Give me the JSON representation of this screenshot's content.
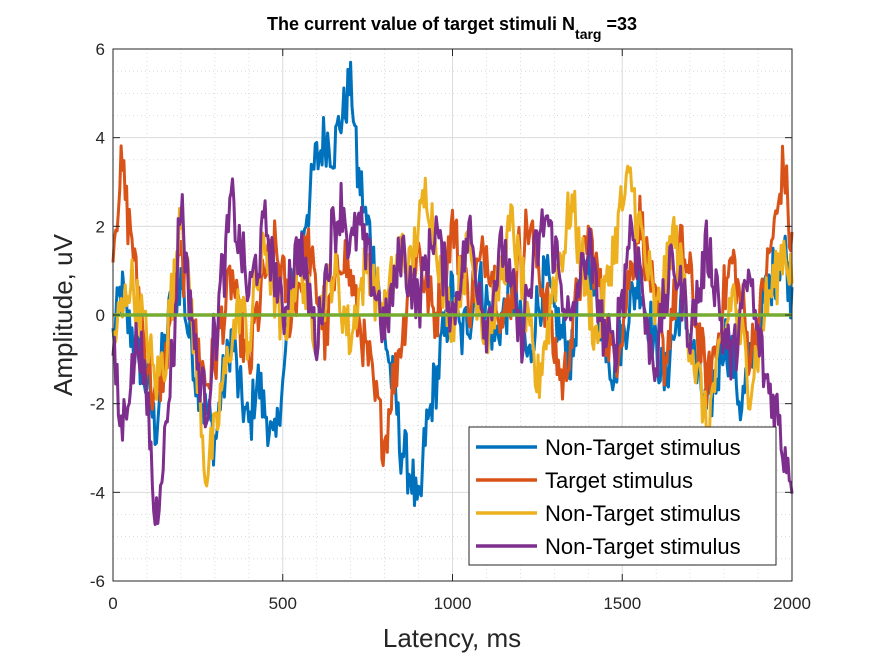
{
  "chart_data": {
    "type": "line",
    "title": {
      "main": "The current value of target stimuli N",
      "subscript": "targ",
      "suffix": " =33"
    },
    "xlabel": "Latency, ms",
    "ylabel": "Amplitude, uV",
    "xlim": [
      0,
      2000
    ],
    "ylim": [
      -6,
      6
    ],
    "xticks": [
      0,
      500,
      1000,
      1500,
      2000
    ],
    "yticks": [
      -6,
      -4,
      -2,
      0,
      2,
      4,
      6
    ],
    "xtick_labels": [
      "0",
      "500",
      "1000",
      "1500",
      "2000"
    ],
    "ytick_labels": [
      "-6",
      "-4",
      "-2",
      "0",
      "2",
      "4",
      "6"
    ],
    "grid": true,
    "minor_grid": true,
    "legend_position": "bottom-right",
    "series": [
      {
        "name": "Non-Target stimulus",
        "color": "#0072BD",
        "x": [
          0,
          25,
          50,
          75,
          100,
          125,
          150,
          175,
          200,
          225,
          250,
          275,
          300,
          325,
          350,
          375,
          400,
          425,
          450,
          475,
          500,
          525,
          550,
          575,
          600,
          625,
          650,
          675,
          700,
          725,
          750,
          775,
          800,
          825,
          850,
          875,
          900,
          925,
          950,
          975,
          1000,
          1025,
          1050,
          1075,
          1100,
          1125,
          1150,
          1175,
          1200,
          1225,
          1250,
          1275,
          1300,
          1325,
          1350,
          1375,
          1400,
          1425,
          1450,
          1475,
          1500,
          1525,
          1550,
          1575,
          1600,
          1625,
          1650,
          1675,
          1700,
          1725,
          1750,
          1775,
          1800,
          1825,
          1850,
          1875,
          1900,
          1925,
          1950,
          1975,
          2000
        ],
        "values": [
          -0.5,
          0.5,
          -0.3,
          -1.0,
          -1.5,
          -2.5,
          -0.8,
          0.3,
          0.8,
          -0.4,
          -1.5,
          -2.2,
          -2.8,
          -1.5,
          -0.5,
          -1.8,
          -2.5,
          -1.5,
          -2.2,
          -3.0,
          -1.5,
          0.5,
          1.5,
          2.5,
          3.5,
          4.0,
          3.8,
          4.5,
          5.2,
          3.0,
          2.0,
          1.0,
          -0.5,
          -1.5,
          -3.0,
          -3.5,
          -4.5,
          -2.5,
          -1.5,
          -0.5,
          0.5,
          -0.5,
          0.0,
          0.8,
          0.3,
          -0.5,
          0.0,
          0.5,
          -0.3,
          -1.0,
          0.2,
          0.8,
          0.0,
          -0.5,
          -1.0,
          0.5,
          1.2,
          0.3,
          -0.5,
          -1.2,
          -0.5,
          0.3,
          0.8,
          0.0,
          -0.8,
          -1.5,
          -0.5,
          0.3,
          -0.5,
          -1.5,
          -2.2,
          -1.5,
          -0.5,
          -1.0,
          -2.0,
          -1.2,
          -0.3,
          0.5,
          1.0,
          1.5,
          0.5
        ]
      },
      {
        "name": "Target stimulus",
        "color": "#D95319",
        "x": [
          0,
          25,
          50,
          75,
          100,
          125,
          150,
          175,
          200,
          225,
          250,
          275,
          300,
          325,
          350,
          375,
          400,
          425,
          450,
          475,
          500,
          525,
          550,
          575,
          600,
          625,
          650,
          675,
          700,
          725,
          750,
          775,
          800,
          825,
          850,
          875,
          900,
          925,
          950,
          975,
          1000,
          1025,
          1050,
          1075,
          1100,
          1125,
          1150,
          1175,
          1200,
          1225,
          1250,
          1275,
          1300,
          1325,
          1350,
          1375,
          1400,
          1425,
          1450,
          1475,
          1500,
          1525,
          1550,
          1575,
          1600,
          1625,
          1650,
          1675,
          1700,
          1725,
          1750,
          1775,
          1800,
          1825,
          1850,
          1875,
          1900,
          1925,
          1950,
          1975,
          2000
        ],
        "values": [
          1.8,
          3.2,
          2.0,
          0.5,
          -1.0,
          -2.0,
          -1.2,
          0.2,
          1.2,
          0.5,
          -0.8,
          -1.5,
          -1.0,
          0.0,
          0.8,
          -0.3,
          -1.2,
          0.0,
          1.0,
          1.5,
          0.8,
          0.0,
          0.8,
          1.5,
          0.5,
          -0.5,
          0.5,
          1.5,
          0.8,
          -0.2,
          -1.0,
          -2.0,
          -2.8,
          -1.5,
          -0.5,
          0.8,
          1.5,
          0.5,
          0.0,
          1.0,
          2.0,
          1.2,
          0.3,
          1.0,
          1.5,
          0.8,
          -0.2,
          0.5,
          1.5,
          2.0,
          1.2,
          0.3,
          -0.8,
          -1.5,
          -0.5,
          0.8,
          1.8,
          1.0,
          -0.3,
          -1.0,
          -0.2,
          1.0,
          2.2,
          1.2,
          0.0,
          -1.0,
          0.2,
          1.5,
          0.8,
          -0.5,
          -1.5,
          -0.8,
          0.5,
          1.2,
          0.3,
          -0.8,
          -0.2,
          1.0,
          2.0,
          3.3,
          1.5
        ]
      },
      {
        "name": "Non-Target stimulus",
        "color": "#EDB120",
        "x": [
          0,
          25,
          50,
          75,
          100,
          125,
          150,
          175,
          200,
          225,
          250,
          275,
          300,
          325,
          350,
          375,
          400,
          425,
          450,
          475,
          500,
          525,
          550,
          575,
          600,
          625,
          650,
          675,
          700,
          725,
          750,
          775,
          800,
          825,
          850,
          875,
          900,
          925,
          950,
          975,
          1000,
          1025,
          1050,
          1075,
          1100,
          1125,
          1150,
          1175,
          1200,
          1225,
          1250,
          1275,
          1300,
          1325,
          1350,
          1375,
          1400,
          1425,
          1450,
          1475,
          1500,
          1525,
          1550,
          1575,
          1600,
          1625,
          1650,
          1675,
          1700,
          1725,
          1750,
          1775,
          1800,
          1825,
          1850,
          1875,
          1900,
          1925,
          1950,
          1975,
          2000
        ],
        "values": [
          -0.5,
          0.0,
          0.8,
          0.2,
          -0.5,
          -1.5,
          -1.0,
          0.5,
          2.5,
          0.5,
          -1.5,
          -3.5,
          -2.8,
          -1.5,
          -0.5,
          0.2,
          -0.5,
          0.8,
          1.5,
          0.5,
          -0.5,
          0.5,
          1.2,
          0.3,
          -0.3,
          0.5,
          1.0,
          0.2,
          -0.5,
          0.5,
          1.2,
          0.5,
          0.0,
          0.8,
          1.5,
          1.0,
          2.0,
          2.8,
          1.8,
          0.5,
          0.0,
          0.8,
          1.5,
          0.5,
          -0.5,
          0.3,
          1.2,
          2.0,
          1.0,
          -0.5,
          -1.5,
          -0.5,
          0.8,
          1.5,
          2.5,
          1.5,
          0.3,
          -0.5,
          0.5,
          1.5,
          2.5,
          3.0,
          2.0,
          1.0,
          0.0,
          0.8,
          1.8,
          1.0,
          -0.5,
          -1.5,
          -2.5,
          -1.5,
          -0.5,
          0.5,
          -0.5,
          -1.5,
          -0.8,
          0.3,
          0.8,
          1.5,
          1.0
        ]
      },
      {
        "name": "Non-Target stimulus",
        "color": "#7E2F8E",
        "x": [
          0,
          25,
          50,
          75,
          100,
          125,
          150,
          175,
          200,
          225,
          250,
          275,
          300,
          325,
          350,
          375,
          400,
          425,
          450,
          475,
          500,
          525,
          550,
          575,
          600,
          625,
          650,
          675,
          700,
          725,
          750,
          775,
          800,
          825,
          850,
          875,
          900,
          925,
          950,
          975,
          1000,
          1025,
          1050,
          1075,
          1100,
          1125,
          1150,
          1175,
          1200,
          1225,
          1250,
          1275,
          1300,
          1325,
          1350,
          1375,
          1400,
          1425,
          1450,
          1475,
          1500,
          1525,
          1550,
          1575,
          1600,
          1625,
          1650,
          1675,
          1700,
          1725,
          1750,
          1775,
          1800,
          1825,
          1850,
          1875,
          1900,
          1925,
          1950,
          1975,
          2000
        ],
        "values": [
          -1.0,
          -2.5,
          -1.5,
          -0.5,
          -2.0,
          -4.5,
          -3.0,
          -1.0,
          2.5,
          0.5,
          -1.2,
          -2.0,
          -0.5,
          1.0,
          2.5,
          1.5,
          0.5,
          1.2,
          2.0,
          1.0,
          0.0,
          1.0,
          1.5,
          0.5,
          -0.5,
          0.8,
          2.0,
          2.5,
          1.5,
          2.0,
          1.2,
          0.5,
          -0.3,
          0.5,
          1.5,
          0.8,
          0.3,
          1.2,
          2.0,
          1.0,
          0.0,
          1.0,
          1.8,
          0.8,
          -0.2,
          0.8,
          1.5,
          0.5,
          -0.5,
          0.5,
          1.5,
          2.2,
          1.5,
          0.5,
          -0.3,
          0.8,
          1.5,
          0.5,
          -0.5,
          -0.8,
          0.5,
          2.0,
          1.2,
          -0.5,
          -1.0,
          0.3,
          1.2,
          0.5,
          -0.3,
          0.5,
          1.5,
          0.8,
          -0.5,
          -1.0,
          0.0,
          0.8,
          -0.5,
          -1.5,
          -2.0,
          -3.0,
          -3.5
        ]
      },
      {
        "name": "",
        "color": "#77AC30",
        "x": [
          0,
          2000
        ],
        "values": [
          0,
          0
        ]
      }
    ],
    "legend_entries": [
      {
        "label": "Non-Target stimulus",
        "color": "#0072BD"
      },
      {
        "label": "Target stimulus",
        "color": "#D95319"
      },
      {
        "label": "Non-Target stimulus",
        "color": "#EDB120"
      },
      {
        "label": "Non-Target stimulus",
        "color": "#7E2F8E"
      }
    ]
  }
}
